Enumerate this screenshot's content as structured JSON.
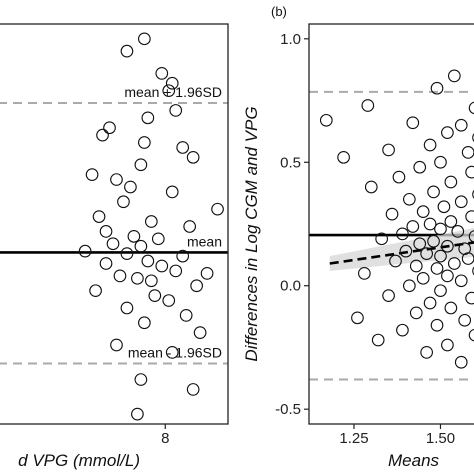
{
  "chart_data": [
    {
      "type": "scatter",
      "panel": "a",
      "title": "",
      "xlabel": "d VPG (mmol/L)",
      "ylabel": "",
      "xlim": [
        3.2,
        9.8
      ],
      "ylim": [
        -0.56,
        1.06
      ],
      "x_ticks": [
        {
          "value": 8,
          "label": "8"
        }
      ],
      "y_ticks": [],
      "grid": false,
      "lines": [
        {
          "name": "mean",
          "value": 0.135,
          "style": "solid",
          "color": "#000000"
        },
        {
          "name": "mean + 1.96SD",
          "value": 0.74,
          "style": "dashed",
          "color": "#aaaaaa"
        },
        {
          "name": "mean - 1.96SD",
          "value": -0.315,
          "style": "dashed",
          "color": "#aaaaaa"
        }
      ],
      "annotations": [
        {
          "text": "mean + 1.96SD",
          "anchor": "mean + 1.96SD"
        },
        {
          "text": "mean",
          "anchor": "mean"
        },
        {
          "text": "mean - 1.96SD",
          "anchor": "mean - 1.96SD"
        }
      ],
      "points": [
        [
          7.4,
          1.0
        ],
        [
          6.9,
          0.95
        ],
        [
          7.9,
          0.86
        ],
        [
          8.2,
          0.82
        ],
        [
          8.1,
          0.79
        ],
        [
          8.3,
          0.71
        ],
        [
          7.5,
          0.68
        ],
        [
          6.4,
          0.64
        ],
        [
          6.2,
          0.61
        ],
        [
          7.4,
          0.58
        ],
        [
          8.5,
          0.56
        ],
        [
          8.8,
          0.52
        ],
        [
          7.3,
          0.49
        ],
        [
          5.9,
          0.45
        ],
        [
          6.6,
          0.43
        ],
        [
          7.0,
          0.4
        ],
        [
          8.2,
          0.38
        ],
        [
          6.8,
          0.34
        ],
        [
          9.5,
          0.31
        ],
        [
          6.1,
          0.28
        ],
        [
          7.6,
          0.26
        ],
        [
          8.7,
          0.24
        ],
        [
          6.3,
          0.22
        ],
        [
          7.1,
          0.2
        ],
        [
          7.8,
          0.19
        ],
        [
          6.5,
          0.17
        ],
        [
          7.3,
          0.16
        ],
        [
          5.7,
          0.14
        ],
        [
          6.9,
          0.13
        ],
        [
          8.5,
          0.12
        ],
        [
          7.5,
          0.1
        ],
        [
          6.3,
          0.09
        ],
        [
          7.9,
          0.08
        ],
        [
          8.3,
          0.06
        ],
        [
          9.2,
          0.05
        ],
        [
          6.7,
          0.04
        ],
        [
          7.2,
          0.03
        ],
        [
          7.6,
          0.02
        ],
        [
          8.9,
          0.0
        ],
        [
          6.0,
          -0.02
        ],
        [
          7.7,
          -0.04
        ],
        [
          8.1,
          -0.06
        ],
        [
          6.9,
          -0.09
        ],
        [
          8.6,
          -0.12
        ],
        [
          7.4,
          -0.15
        ],
        [
          9.0,
          -0.19
        ],
        [
          6.6,
          -0.24
        ],
        [
          8.2,
          -0.27
        ],
        [
          7.3,
          -0.38
        ],
        [
          8.8,
          -0.42
        ],
        [
          7.2,
          -0.52
        ]
      ]
    },
    {
      "type": "scatter",
      "panel": "b",
      "title": "(b)",
      "xlabel": "Means",
      "ylabel": "Differences in Log CGM and VPG",
      "xlim": [
        1.12,
        1.62
      ],
      "ylim": [
        -0.56,
        1.06
      ],
      "x_ticks": [
        {
          "value": 1.25,
          "label": "1.25"
        },
        {
          "value": 1.5,
          "label": "1.50"
        }
      ],
      "y_ticks": [
        {
          "value": 1.0,
          "label": "1.0"
        },
        {
          "value": 0.5,
          "label": "0.5"
        },
        {
          "value": 0.0,
          "label": "0.0"
        },
        {
          "value": -0.5,
          "label": "-0.5"
        }
      ],
      "grid": false,
      "lines": [
        {
          "name": "mean",
          "value": 0.205,
          "style": "solid",
          "color": "#000000"
        },
        {
          "name": "mean + 1.96SD",
          "value": 0.785,
          "style": "dashed",
          "color": "#aaaaaa"
        },
        {
          "name": "mean - 1.96SD",
          "value": -0.38,
          "style": "dashed",
          "color": "#aaaaaa"
        }
      ],
      "trend": {
        "x": [
          1.18,
          1.62
        ],
        "y": [
          0.09,
          0.18
        ],
        "style": "dashed",
        "color": "#000000"
      },
      "points": [
        [
          1.54,
          0.85
        ],
        [
          1.49,
          0.8
        ],
        [
          1.29,
          0.73
        ],
        [
          1.6,
          0.72
        ],
        [
          1.17,
          0.67
        ],
        [
          1.42,
          0.66
        ],
        [
          1.56,
          0.65
        ],
        [
          1.52,
          0.62
        ],
        [
          1.61,
          0.6
        ],
        [
          1.47,
          0.57
        ],
        [
          1.35,
          0.55
        ],
        [
          1.58,
          0.54
        ],
        [
          1.22,
          0.52
        ],
        [
          1.5,
          0.5
        ],
        [
          1.44,
          0.48
        ],
        [
          1.59,
          0.46
        ],
        [
          1.38,
          0.44
        ],
        [
          1.53,
          0.42
        ],
        [
          1.3,
          0.4
        ],
        [
          1.48,
          0.38
        ],
        [
          1.61,
          0.37
        ],
        [
          1.41,
          0.35
        ],
        [
          1.56,
          0.34
        ],
        [
          1.51,
          0.32
        ],
        [
          1.45,
          0.3
        ],
        [
          1.36,
          0.29
        ],
        [
          1.59,
          0.28
        ],
        [
          1.53,
          0.26
        ],
        [
          1.47,
          0.25
        ],
        [
          1.42,
          0.24
        ],
        [
          1.5,
          0.23
        ],
        [
          1.55,
          0.22
        ],
        [
          1.39,
          0.21
        ],
        [
          1.6,
          0.2
        ],
        [
          1.33,
          0.19
        ],
        [
          1.48,
          0.18
        ],
        [
          1.44,
          0.17
        ],
        [
          1.52,
          0.16
        ],
        [
          1.57,
          0.15
        ],
        [
          1.4,
          0.14
        ],
        [
          1.46,
          0.13
        ],
        [
          1.5,
          0.12
        ],
        [
          1.58,
          0.11
        ],
        [
          1.37,
          0.1
        ],
        [
          1.54,
          0.09
        ],
        [
          1.43,
          0.08
        ],
        [
          1.49,
          0.07
        ],
        [
          1.61,
          0.06
        ],
        [
          1.28,
          0.05
        ],
        [
          1.52,
          0.04
        ],
        [
          1.45,
          0.03
        ],
        [
          1.56,
          0.02
        ],
        [
          1.41,
          0.0
        ],
        [
          1.5,
          -0.02
        ],
        [
          1.35,
          -0.04
        ],
        [
          1.59,
          -0.05
        ],
        [
          1.47,
          -0.07
        ],
        [
          1.53,
          -0.09
        ],
        [
          1.43,
          -0.11
        ],
        [
          1.26,
          -0.13
        ],
        [
          1.57,
          -0.14
        ],
        [
          1.49,
          -0.16
        ],
        [
          1.39,
          -0.18
        ],
        [
          1.6,
          -0.2
        ],
        [
          1.32,
          -0.22
        ],
        [
          1.52,
          -0.24
        ],
        [
          1.46,
          -0.27
        ],
        [
          1.56,
          -0.31
        ]
      ]
    }
  ]
}
